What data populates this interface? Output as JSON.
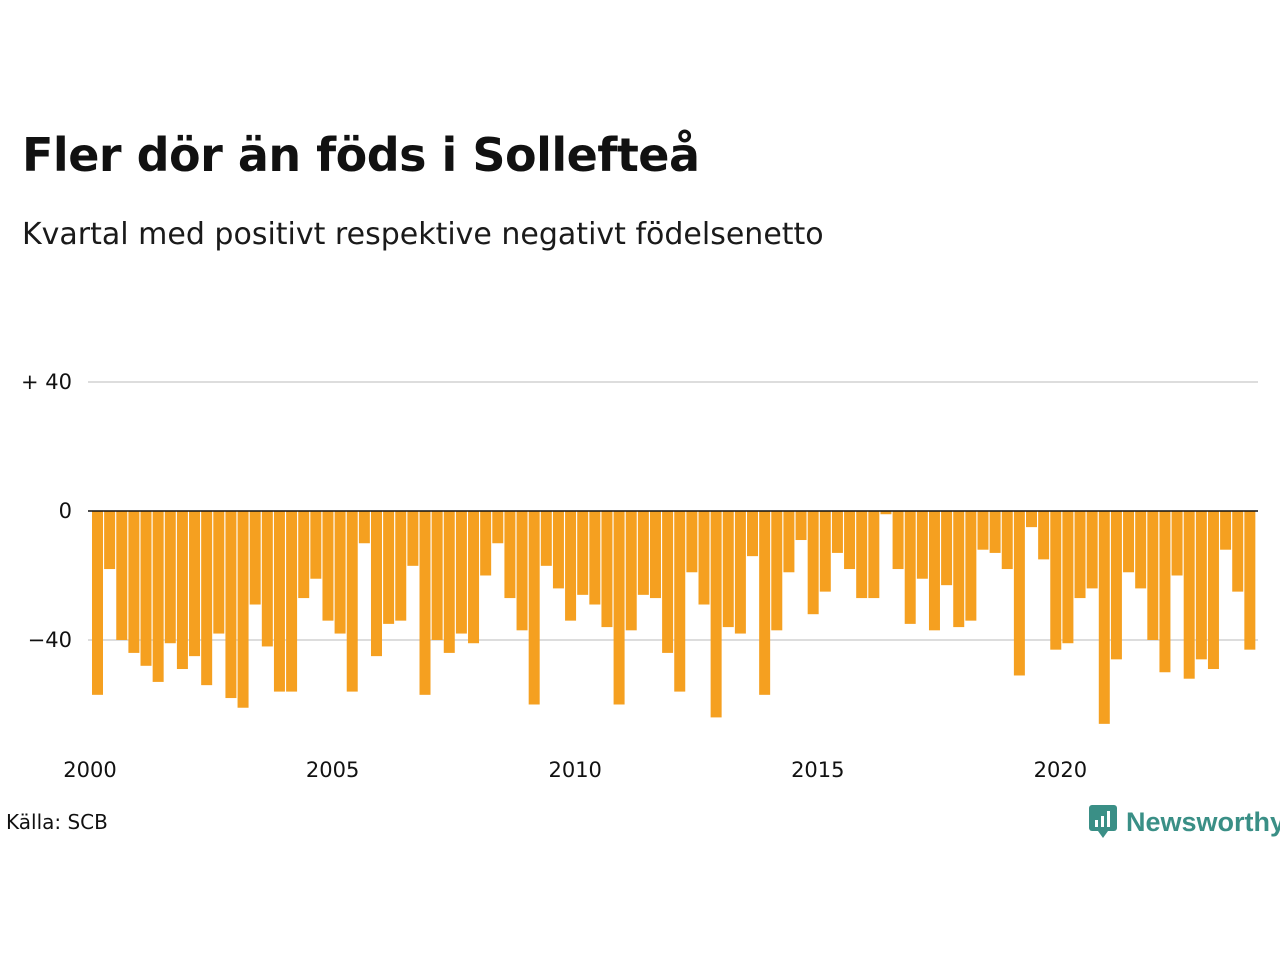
{
  "title": "Fler dör än föds i Sollefteå",
  "subtitle": "Kvartal med positivt respektive negativt födelsenetto",
  "source": "Källa: SCB",
  "brand": {
    "name": "Newsworthy",
    "color": "#3a8f86",
    "icon": "newsworthy-logo-icon"
  },
  "colors": {
    "bar": "#f5a020",
    "grid": "#dddddd",
    "zero_line": "#111111"
  },
  "chart_data": {
    "type": "bar",
    "x_start": "2000 Q1",
    "x_tick_labels": [
      "2000",
      "2005",
      "2010",
      "2015",
      "2020"
    ],
    "y_tick_labels": [
      "+ 40",
      "0",
      "−40"
    ],
    "y_ticks": [
      40,
      0,
      -40
    ],
    "ylim": [
      -72,
      40
    ],
    "grid": true,
    "values": [
      -57,
      -18,
      -40,
      -44,
      -48,
      -53,
      -41,
      -49,
      -45,
      -54,
      -38,
      -58,
      -61,
      -29,
      -42,
      -56,
      -56,
      -27,
      -21,
      -34,
      -38,
      -56,
      -10,
      -45,
      -35,
      -34,
      -17,
      -57,
      -40,
      -44,
      -38,
      -41,
      -20,
      -10,
      -27,
      -37,
      -60,
      -17,
      -24,
      -34,
      -26,
      -29,
      -36,
      -60,
      -37,
      -26,
      -27,
      -44,
      -56,
      -19,
      -29,
      -64,
      -36,
      -38,
      -14,
      -57,
      -37,
      -19,
      -9,
      -32,
      -25,
      -13,
      -18,
      -27,
      -27,
      -1,
      -18,
      -35,
      -21,
      -37,
      -23,
      -36,
      -34,
      -12,
      -13,
      -18,
      -51,
      -5,
      -15,
      -43,
      -41,
      -27,
      -24,
      -66,
      -46,
      -19,
      -24,
      -40,
      -50,
      -20,
      -52,
      -46,
      -49,
      -12,
      -25,
      -43
    ]
  }
}
